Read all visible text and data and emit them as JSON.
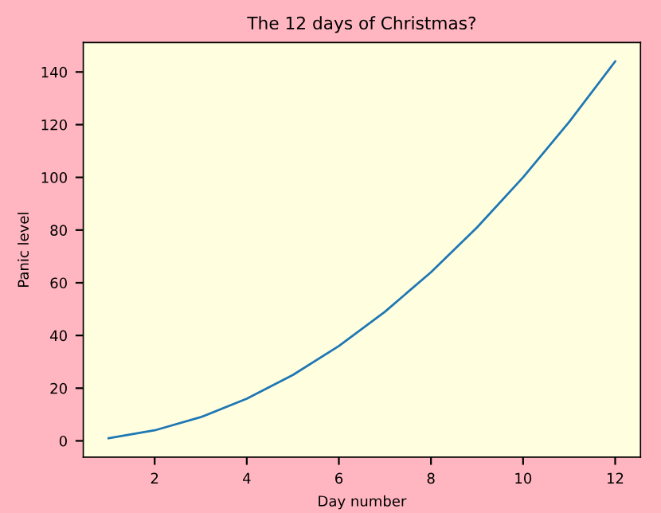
{
  "chart_data": {
    "type": "line",
    "title": "The 12 days of Christmas?",
    "xlabel": "Day number",
    "ylabel": "Panic level",
    "x": [
      1,
      2,
      3,
      4,
      5,
      6,
      7,
      8,
      9,
      10,
      11,
      12
    ],
    "series": [
      {
        "color": "#1f77b4",
        "values": [
          1,
          4,
          9,
          16,
          25,
          36,
          49,
          64,
          81,
          100,
          121,
          144
        ]
      }
    ],
    "xlim": [
      0.45,
      12.55
    ],
    "ylim": [
      -6.15,
      151.15
    ],
    "xticks": [
      2,
      4,
      6,
      8,
      10,
      12
    ],
    "yticks": [
      0,
      20,
      40,
      60,
      80,
      100,
      120,
      140
    ],
    "grid": false,
    "legend": false,
    "marker": "none",
    "line_style": "solid"
  }
}
